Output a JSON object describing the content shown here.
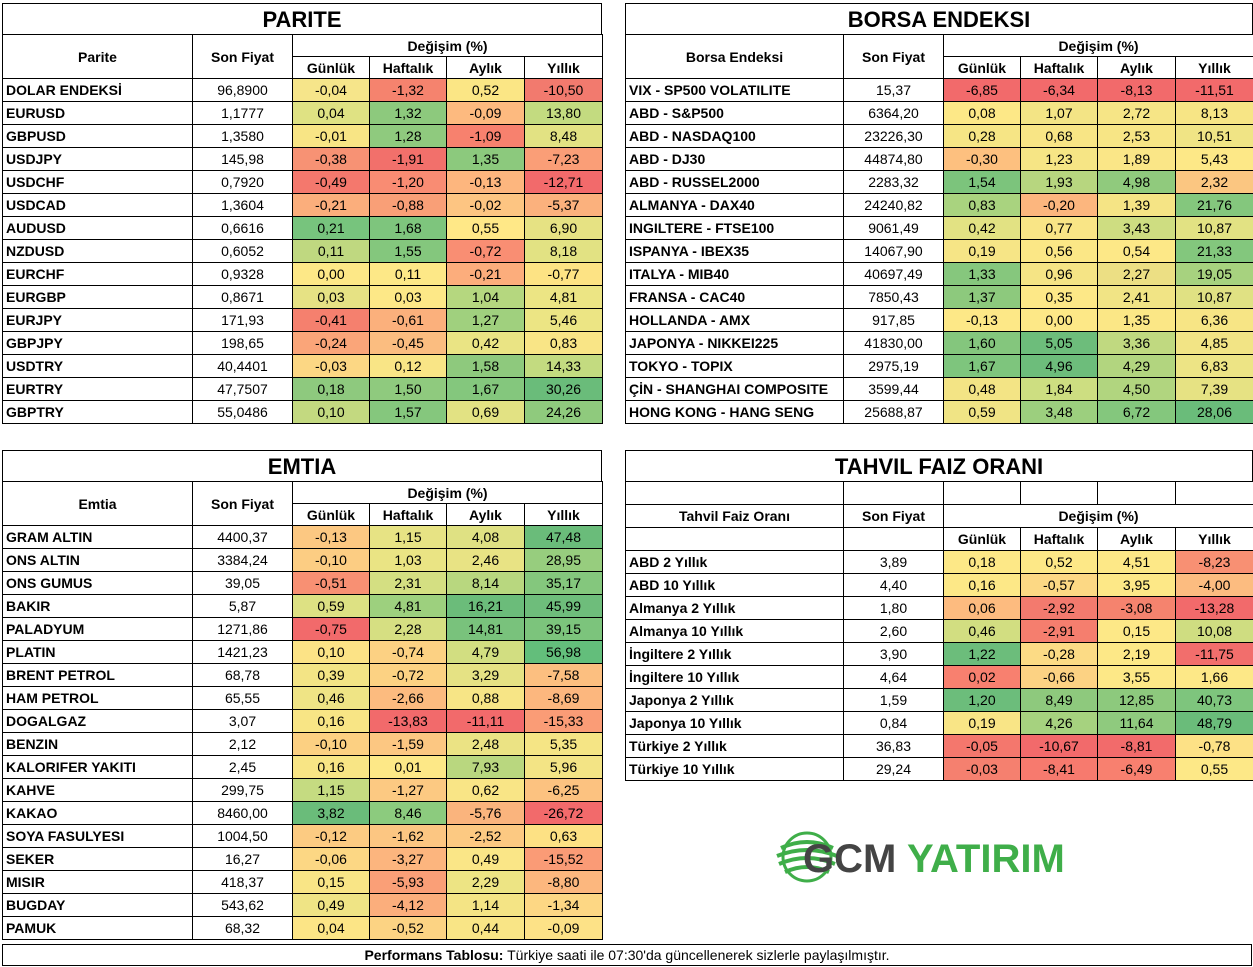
{
  "parite": {
    "title": "PARITE",
    "col_name": "Parite",
    "col_price": "Son Fiyat",
    "col_change": "Değişim (%)",
    "periods": [
      "Günlük",
      "Haftalık",
      "Aylık",
      "Yıllık"
    ],
    "rows": [
      {
        "name": "DOLAR ENDEKSİ",
        "price": "96,8900",
        "vals": [
          "-0,04",
          "-1,32",
          "0,52",
          "-10,50"
        ],
        "colors": [
          "#f6e58a",
          "#f5836e",
          "#fbe685",
          "#f27a6e"
        ]
      },
      {
        "name": "EURUSD",
        "price": "1,1777",
        "vals": [
          "0,04",
          "1,32",
          "-0,09",
          "13,80"
        ],
        "colors": [
          "#dfe283",
          "#8dc97d",
          "#fdba7f",
          "#c3db80"
        ]
      },
      {
        "name": "GBPUSD",
        "price": "1,3580",
        "vals": [
          "-0,01",
          "1,28",
          "-1,09",
          "8,48"
        ],
        "colors": [
          "#f8e585",
          "#8fca7e",
          "#f7816e",
          "#e2e283"
        ]
      },
      {
        "name": "USDJPY",
        "price": "145,98",
        "vals": [
          "-0,38",
          "-1,91",
          "1,35",
          "-7,23"
        ],
        "colors": [
          "#f79274",
          "#f2706b",
          "#8cc97d",
          "#fa9e77"
        ]
      },
      {
        "name": "USDCHF",
        "price": "0,7920",
        "vals": [
          "-0,49",
          "-1,20",
          "-0,13",
          "-12,71"
        ],
        "colors": [
          "#f4786d",
          "#f98c73",
          "#fdb67e",
          "#f26a6b"
        ]
      },
      {
        "name": "USDCAD",
        "price": "1,3604",
        "vals": [
          "-0,21",
          "-0,88",
          "-0,02",
          "-5,37"
        ],
        "colors": [
          "#fbae7c",
          "#f99f77",
          "#fdc582",
          "#fbb17d"
        ]
      },
      {
        "name": "AUDUSD",
        "price": "0,6616",
        "vals": [
          "0,21",
          "1,68",
          "0,55",
          "6,90"
        ],
        "colors": [
          "#77c47d",
          "#7ec57d",
          "#ffe887",
          "#e6e283"
        ]
      },
      {
        "name": "NZDUSD",
        "price": "0,6052",
        "vals": [
          "0,11",
          "1,55",
          "-0,72",
          "8,18"
        ],
        "colors": [
          "#bfd880",
          "#84c77d",
          "#f98e73",
          "#e2e283"
        ]
      },
      {
        "name": "EURCHF",
        "price": "0,9328",
        "vals": [
          "0,00",
          "0,11",
          "-0,21",
          "-0,77"
        ],
        "colors": [
          "#fde887",
          "#fde887",
          "#fcad7c",
          "#fde384"
        ]
      },
      {
        "name": "EURGBP",
        "price": "0,8671",
        "vals": [
          "0,03",
          "0,03",
          "1,04",
          "4,81"
        ],
        "colors": [
          "#e6e284",
          "#fde887",
          "#b5d77f",
          "#ece584"
        ]
      },
      {
        "name": "EURJPY",
        "price": "171,93",
        "vals": [
          "-0,41",
          "-0,61",
          "1,27",
          "5,46"
        ],
        "colors": [
          "#f5806e",
          "#fbb07c",
          "#a0d07e",
          "#ece584"
        ]
      },
      {
        "name": "GBPJPY",
        "price": "198,65",
        "vals": [
          "-0,24",
          "-0,45",
          "0,42",
          "0,83"
        ],
        "colors": [
          "#faa579",
          "#fbbd80",
          "#eae484",
          "#f9e586"
        ]
      },
      {
        "name": "USDTRY",
        "price": "40,4401",
        "vals": [
          "-0,03",
          "0,12",
          "1,58",
          "14,33"
        ],
        "colors": [
          "#fcd784",
          "#f9e586",
          "#8ec97d",
          "#c3db80"
        ]
      },
      {
        "name": "EURTRY",
        "price": "47,7507",
        "vals": [
          "0,18",
          "1,50",
          "1,67",
          "30,26"
        ],
        "colors": [
          "#8ec97e",
          "#8fca7e",
          "#84c77d",
          "#6abc7a"
        ]
      },
      {
        "name": "GBPTRY",
        "price": "55,0486",
        "vals": [
          "0,10",
          "1,57",
          "0,69",
          "24,26"
        ],
        "colors": [
          "#c3d980",
          "#85c77d",
          "#e2e283",
          "#8fca7d"
        ]
      }
    ]
  },
  "borsa": {
    "title": "BORSA ENDEKSI",
    "col_name": "Borsa Endeksi",
    "col_price": "Son Fiyat",
    "col_change": "Değişim (%)",
    "periods": [
      "Günlük",
      "Haftalık",
      "Aylık",
      "Yıllık"
    ],
    "rows": [
      {
        "name": "VIX  - SP500 VOLATILITE",
        "price": "15,37",
        "vals": [
          "-6,85",
          "-6,34",
          "-8,13",
          "-11,51"
        ],
        "colors": [
          "#f26a6b",
          "#f26a6b",
          "#f26a6b",
          "#f26a6b"
        ]
      },
      {
        "name": "ABD - S&P500",
        "price": "6364,20",
        "vals": [
          "0,08",
          "1,07",
          "2,72",
          "8,13"
        ],
        "colors": [
          "#fde887",
          "#f3e485",
          "#f6e586",
          "#f7e585"
        ]
      },
      {
        "name": "ABD - NASDAQ100",
        "price": "23226,30",
        "vals": [
          "0,28",
          "0,68",
          "2,53",
          "10,51"
        ],
        "colors": [
          "#f6e585",
          "#f8e585",
          "#f7e585",
          "#f0e485"
        ]
      },
      {
        "name": "ABD - DJ30",
        "price": "44874,80",
        "vals": [
          "-0,30",
          "1,23",
          "1,89",
          "5,43"
        ],
        "colors": [
          "#fdc07f",
          "#f6e585",
          "#fae687",
          "#fde887"
        ]
      },
      {
        "name": "ABD - RUSSEL2000",
        "price": "2283,32",
        "vals": [
          "1,54",
          "1,93",
          "4,98",
          "2,32"
        ],
        "colors": [
          "#7cc47c",
          "#b7d67f",
          "#90ca7d",
          "#fbc681"
        ]
      },
      {
        "name": "ALMANYA - DAX40",
        "price": "24240,82",
        "vals": [
          "0,83",
          "-0,20",
          "1,39",
          "21,76"
        ],
        "colors": [
          "#a9d37f",
          "#fcb67e",
          "#f5e485",
          "#84c77d"
        ]
      },
      {
        "name": "INGILTERE - FTSE100",
        "price": "9061,49",
        "vals": [
          "0,42",
          "0,77",
          "3,43",
          "10,87"
        ],
        "colors": [
          "#e2e283",
          "#f9e586",
          "#cedd81",
          "#e2e283"
        ]
      },
      {
        "name": "ISPANYA - IBEX35",
        "price": "14067,90",
        "vals": [
          "0,19",
          "0,56",
          "0,54",
          "21,33"
        ],
        "colors": [
          "#f6e586",
          "#fbe786",
          "#fde887",
          "#83c77d"
        ]
      },
      {
        "name": "ITALYA - MIB40",
        "price": "40697,49",
        "vals": [
          "1,33",
          "0,96",
          "2,27",
          "19,05"
        ],
        "colors": [
          "#86c77d",
          "#f5e485",
          "#ecdf84",
          "#a7d27f"
        ]
      },
      {
        "name": "FRANSA - CAC40",
        "price": "7850,43",
        "vals": [
          "1,37",
          "0,35",
          "2,41",
          "10,87"
        ],
        "colors": [
          "#8dc97d",
          "#fde887",
          "#f1e485",
          "#e0e183"
        ]
      },
      {
        "name": "HOLLANDA - AMX",
        "price": "917,85",
        "vals": [
          "-0,13",
          "0,00",
          "1,35",
          "6,36"
        ],
        "colors": [
          "#fde887",
          "#fde887",
          "#fbe786",
          "#f7e585"
        ]
      },
      {
        "name": "JAPONYA - NIKKEI225",
        "price": "41830,00",
        "vals": [
          "1,60",
          "5,05",
          "3,36",
          "4,85"
        ],
        "colors": [
          "#84c67d",
          "#6dbd7b",
          "#c0d980",
          "#f2e485"
        ]
      },
      {
        "name": "TOKYO - TOPIX",
        "price": "2975,19",
        "vals": [
          "1,67",
          "4,96",
          "4,29",
          "6,83"
        ],
        "colors": [
          "#7ec57d",
          "#6dbd7b",
          "#b2d57f",
          "#edE485"
        ]
      },
      {
        "name": "ÇİN - SHANGHAI COMPOSITE",
        "price": "3599,44",
        "vals": [
          "0,48",
          "1,84",
          "4,50",
          "7,39"
        ],
        "colors": [
          "#f3e485",
          "#cdde81",
          "#b1d57f",
          "#e6e283"
        ]
      },
      {
        "name": "HONG KONG - HANG SENG",
        "price": "25688,87",
        "vals": [
          "0,59",
          "3,48",
          "6,72",
          "28,06"
        ],
        "colors": [
          "#f0e485",
          "#9ccf7e",
          "#84c77d",
          "#6abc7a"
        ]
      }
    ]
  },
  "emtia": {
    "title": "EMTIA",
    "col_name": "Emtia",
    "col_price": "Son Fiyat",
    "col_change": "Değişim (%)",
    "periods": [
      "Günlük",
      "Haftalık",
      "Aylık",
      "Yıllık"
    ],
    "rows": [
      {
        "name": "GRAM ALTIN",
        "price": "4400,37",
        "vals": [
          "-0,13",
          "1,15",
          "4,08",
          "47,48"
        ],
        "colors": [
          "#fcc882",
          "#e7e384",
          "#dfe183",
          "#6abc7a"
        ]
      },
      {
        "name": "ONS ALTIN",
        "price": "3384,24",
        "vals": [
          "-0,10",
          "1,03",
          "2,46",
          "28,95"
        ],
        "colors": [
          "#fccd83",
          "#eae484",
          "#e8e384",
          "#97cd7e"
        ]
      },
      {
        "name": "ONS GUMUS",
        "price": "39,05",
        "vals": [
          "-0,51",
          "2,31",
          "8,14",
          "35,17"
        ],
        "colors": [
          "#f89073",
          "#d4df82",
          "#b8d77f",
          "#84c77d"
        ]
      },
      {
        "name": "BAKIR",
        "price": "5,87",
        "vals": [
          "0,59",
          "4,81",
          "16,21",
          "45,99"
        ],
        "colors": [
          "#ddE183",
          "#9dd07e",
          "#6bbc7a",
          "#6ebd7b"
        ]
      },
      {
        "name": "PALADYUM",
        "price": "1271,86",
        "vals": [
          "-0,75",
          "2,28",
          "14,81",
          "39,15"
        ],
        "colors": [
          "#f26a6b",
          "#d6df82",
          "#79c27c",
          "#7cc47c"
        ]
      },
      {
        "name": "PLATIN",
        "price": "1421,23",
        "vals": [
          "0,10",
          "-0,74",
          "4,79",
          "56,98"
        ],
        "colors": [
          "#fce386",
          "#fcd183",
          "#d2de81",
          "#63be7b"
        ]
      },
      {
        "name": "BRENT PETROL",
        "price": "68,78",
        "vals": [
          "0,39",
          "-0,72",
          "3,29",
          "-7,58"
        ],
        "colors": [
          "#f3e485",
          "#fcd283",
          "#e5e284",
          "#fcbf80"
        ]
      },
      {
        "name": "HAM PETROL",
        "price": "65,55",
        "vals": [
          "0,46",
          "-2,66",
          "0,88",
          "-8,69"
        ],
        "colors": [
          "#efe485",
          "#fcbb7f",
          "#f7e586",
          "#fcb77e"
        ]
      },
      {
        "name": "DOGALGAZ",
        "price": "3,07",
        "vals": [
          "0,16",
          "-13,83",
          "-11,11",
          "-15,33"
        ],
        "colors": [
          "#f8e585",
          "#f26a6b",
          "#f26a6b",
          "#fa9c76"
        ]
      },
      {
        "name": "BENZIN",
        "price": "2,12",
        "vals": [
          "-0,10",
          "-1,59",
          "2,48",
          "5,35"
        ],
        "colors": [
          "#fcd082",
          "#fcc782",
          "#ebe384",
          "#f5e585"
        ]
      },
      {
        "name": "KALORIFER YAKITI",
        "price": "2,45",
        "vals": [
          "0,16",
          "0,01",
          "7,93",
          "5,96"
        ],
        "colors": [
          "#f8e585",
          "#fde887",
          "#b9d77f",
          "#f3e485"
        ]
      },
      {
        "name": "KAHVE",
        "price": "299,75",
        "vals": [
          "1,15",
          "-1,27",
          "0,62",
          "-6,25"
        ],
        "colors": [
          "#c5db81",
          "#fcc982",
          "#f9e586",
          "#fcc280"
        ]
      },
      {
        "name": "KAKAO",
        "price": "8460,00",
        "vals": [
          "3,82",
          "8,46",
          "-5,76",
          "-26,72"
        ],
        "colors": [
          "#6abc7a",
          "#8ccb7e",
          "#fab47d",
          "#f26a6b"
        ]
      },
      {
        "name": "SOYA FASULYESI",
        "price": "1004,50",
        "vals": [
          "-0,12",
          "-1,62",
          "-2,52",
          "0,63"
        ],
        "colors": [
          "#fccb82",
          "#fcc682",
          "#fcc982",
          "#fde184"
        ]
      },
      {
        "name": "SEKER",
        "price": "16,27",
        "vals": [
          "-0,06",
          "-3,27",
          "0,49",
          "-15,52"
        ],
        "colors": [
          "#fcd784",
          "#fcb57e",
          "#fae687",
          "#fa9b76"
        ]
      },
      {
        "name": "MISIR",
        "price": "418,37",
        "vals": [
          "0,15",
          "-5,93",
          "2,29",
          "-8,80"
        ],
        "colors": [
          "#f9e586",
          "#fa9f77",
          "#ede484",
          "#fcb77e"
        ]
      },
      {
        "name": "BUGDAY",
        "price": "543,62",
        "vals": [
          "0,49",
          "-4,12",
          "1,14",
          "-1,34"
        ],
        "colors": [
          "#efe485",
          "#fbae7c",
          "#f4e485",
          "#fdd784"
        ]
      },
      {
        "name": "PAMUK",
        "price": "68,32",
        "vals": [
          "0,04",
          "-0,52",
          "0,44",
          "-0,09"
        ],
        "colors": [
          "#fce586",
          "#fcd383",
          "#f9e586",
          "#fde287"
        ]
      }
    ]
  },
  "tahvil": {
    "title": "TAHVIL FAIZ ORANI",
    "col_name": "Tahvil Faiz Oranı",
    "col_price": "Son Fiyat",
    "col_change": "Değişim (%)",
    "periods": [
      "Günlük",
      "Haftalık",
      "Aylık",
      "Yıllık"
    ],
    "rows": [
      {
        "name": "ABD 2 Yıllık",
        "price": "3,89",
        "vals": [
          "0,18",
          "0,52",
          "4,51",
          "-8,23"
        ],
        "colors": [
          "#fde887",
          "#fde887",
          "#fde887",
          "#f89073"
        ]
      },
      {
        "name": "ABD 10 Yıllık",
        "price": "4,40",
        "vals": [
          "0,16",
          "-0,57",
          "3,95",
          "-4,00"
        ],
        "colors": [
          "#fde887",
          "#fcd884",
          "#fde887",
          "#fcbc80"
        ]
      },
      {
        "name": "Almanya 2 Yıllık",
        "price": "1,80",
        "vals": [
          "0,06",
          "-2,92",
          "-3,08",
          "-13,28"
        ],
        "colors": [
          "#fdbb7f",
          "#f37a6e",
          "#f5836e",
          "#f26a6b"
        ]
      },
      {
        "name": "Almanya 10 Yıllık",
        "price": "2,60",
        "vals": [
          "0,46",
          "-2,91",
          "0,15",
          "10,08"
        ],
        "colors": [
          "#d2de81",
          "#f57e6e",
          "#fde887",
          "#cfdd81"
        ]
      },
      {
        "name": "İngiltere 2 Yıllık",
        "price": "3,90",
        "vals": [
          "1,22",
          "-0,28",
          "2,19",
          "-11,75"
        ],
        "colors": [
          "#6cbd7b",
          "#fcdb85",
          "#fde887",
          "#f26e6c"
        ]
      },
      {
        "name": "İngiltere 10 Yıllık",
        "price": "4,64",
        "vals": [
          "0,02",
          "-0,66",
          "3,55",
          "1,66"
        ],
        "colors": [
          "#f8806f",
          "#fcd283",
          "#fde887",
          "#fde887"
        ]
      },
      {
        "name": "Japonya 2 Yıllık",
        "price": "1,59",
        "vals": [
          "1,20",
          "8,49",
          "12,85",
          "40,73"
        ],
        "colors": [
          "#6cbd7b",
          "#8ec97d",
          "#8dc97d",
          "#7ec57d"
        ]
      },
      {
        "name": "Japonya 10 Yıllık",
        "price": "0,84",
        "vals": [
          "0,19",
          "4,26",
          "11,64",
          "48,79"
        ],
        "colors": [
          "#f9e586",
          "#a6d27f",
          "#8fca7e",
          "#6abc7a"
        ]
      },
      {
        "name": "Türkiye 2 Yıllık",
        "price": "36,83",
        "vals": [
          "-0,05",
          "-10,67",
          "-8,81",
          "-0,78"
        ],
        "colors": [
          "#f4776d",
          "#f26a6b",
          "#f26b6b",
          "#fde186"
        ]
      },
      {
        "name": "Türkiye 10 Yıllık",
        "price": "29,24",
        "vals": [
          "-0,03",
          "-8,41",
          "-6,49",
          "0,55"
        ],
        "colors": [
          "#f5806f",
          "#f77a6e",
          "#f8806f",
          "#fde887"
        ]
      }
    ]
  },
  "footer": {
    "bold": "Performans Tablosu:",
    "text": " Türkiye saati ile 07:30'da güncellenerek sizlerle paylaşılmıştır."
  },
  "logo": {
    "part1": "GCM",
    "part2": "YATIRIM",
    "color1": "#444444",
    "color2": "#3fae49"
  }
}
